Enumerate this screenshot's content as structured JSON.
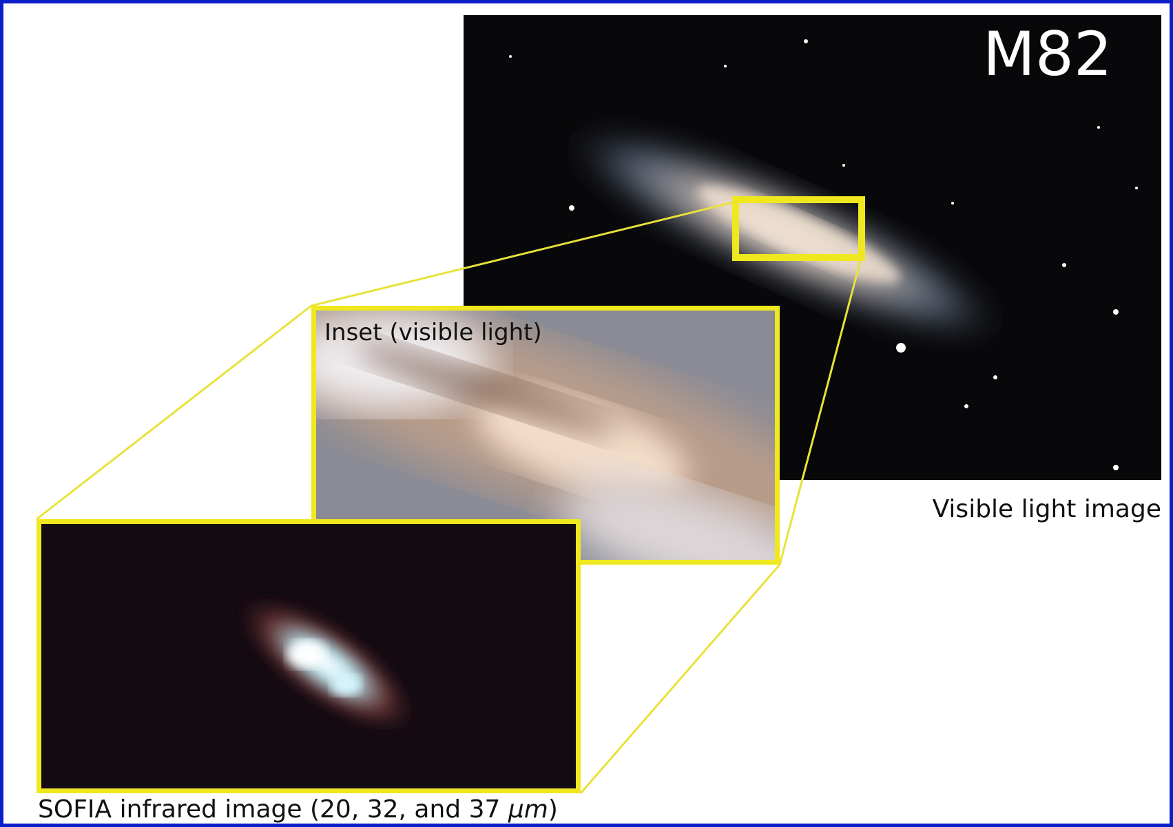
{
  "labels": {
    "object_name": "M82",
    "inset_label": "Inset (visible light)",
    "visible_caption": "Visible light image",
    "infrared_caption": [
      "SOFIA infrared image (20, 32, and 37 ",
      "μm",
      ")"
    ]
  }
}
